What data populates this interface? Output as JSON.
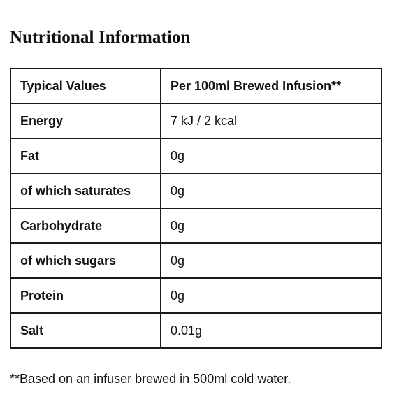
{
  "title": "Nutritional Information",
  "table": {
    "header": {
      "col1": "Typical Values",
      "col2": "Per 100ml Brewed Infusion**"
    },
    "rows": [
      {
        "label": "Energy",
        "value": "7 kJ / 2 kcal"
      },
      {
        "label": "Fat",
        "value": "0g"
      },
      {
        "label": "of which saturates",
        "value": "0g"
      },
      {
        "label": "Carbohydrate",
        "value": "0g"
      },
      {
        "label": "of which sugars",
        "value": "0g"
      },
      {
        "label": "Protein",
        "value": "0g"
      },
      {
        "label": "Salt",
        "value": "0.01g"
      }
    ]
  },
  "footnote": "**Based on an infuser brewed in 500ml cold water."
}
